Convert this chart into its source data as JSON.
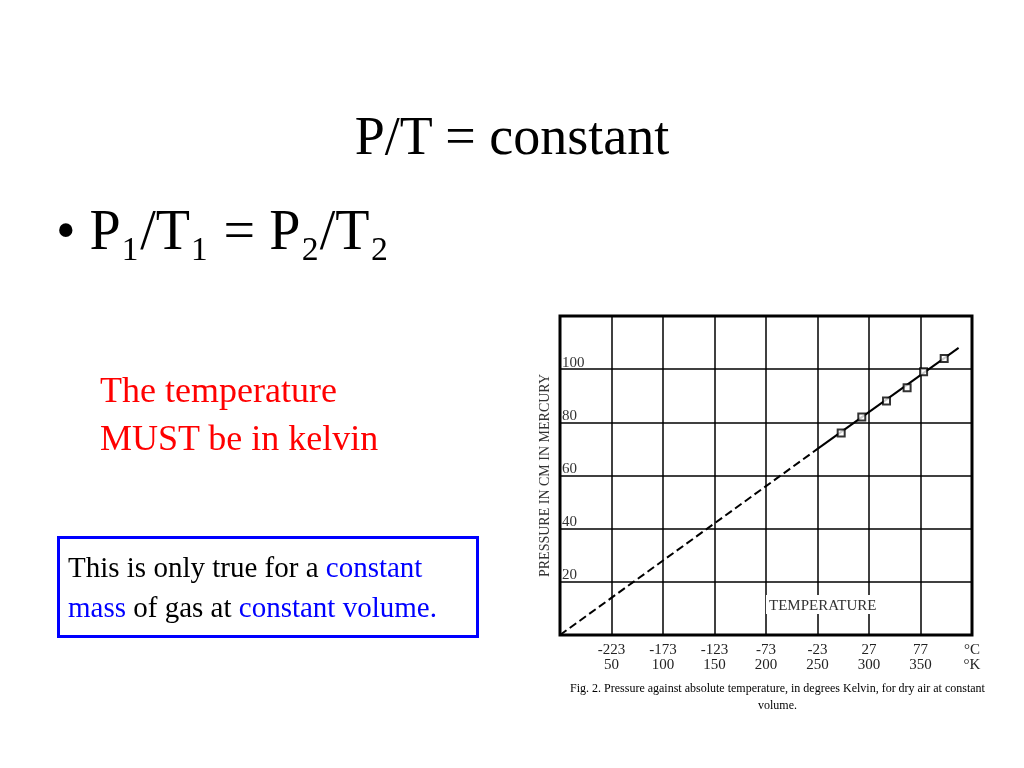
{
  "chart_data": {
    "type": "line",
    "title": "P/T = constant",
    "xlabel": "TEMPERATURE",
    "ylabel": "PRESSURE IN CM IN MERCURY",
    "annotations": [
      "• P₁/T₁ = P₂/T₂",
      "The temperature MUST be in kelvin",
      "This is only true for a constant mass of gas at constant volume.",
      "Fig. 2. Pressure against absolute temperature, in degrees Kelvin, for dry air at constant volume."
    ],
    "xlim": [
      0,
      400
    ],
    "xticks": [
      50,
      100,
      150,
      200,
      250,
      300,
      350,
      {
        "value": 400,
        "label": "°K"
      }
    ],
    "x2lim": [
      -273,
      127
    ],
    "x2ticks": [
      -223,
      -173,
      -123,
      -73,
      -23,
      27,
      77,
      {
        "value": 127,
        "label": "°C"
      }
    ],
    "ylim": [
      0,
      120
    ],
    "yticks": [
      20,
      40,
      60,
      80,
      100
    ],
    "grid": true,
    "series": [
      {
        "color": "#000000",
        "line_style": "dashed",
        "marker": "none",
        "x": [
          0,
          250
        ],
        "values": [
          0,
          70
        ]
      },
      {
        "color": "#000000",
        "line_style": "solid",
        "marker": "none",
        "x": [
          250,
          387
        ],
        "values": [
          70,
          108
        ]
      },
      {
        "type": "scatter",
        "color": "#000000",
        "marker": "square",
        "x": [
          273,
          293,
          317,
          337,
          353,
          373
        ],
        "values": [
          76,
          82,
          88,
          93,
          99,
          104
        ]
      }
    ]
  }
}
